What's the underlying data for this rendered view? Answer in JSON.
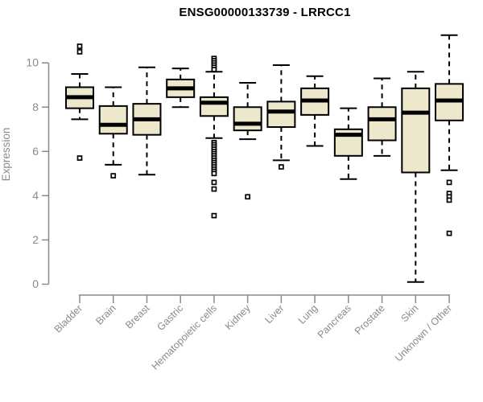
{
  "chart_data": {
    "type": "boxplot",
    "title": "ENSG00000133739 - LRRCC1",
    "ylabel": "Expression",
    "xlabel": "",
    "ylim": [
      0,
      10
    ],
    "yticks": [
      0,
      2,
      4,
      6,
      8,
      10
    ],
    "grid": false,
    "legend": "none",
    "colors": {
      "box_fill": "#ede7cb",
      "box_stroke": "#000000",
      "median": "#000000",
      "axis": "#8a8a8a",
      "tick_label": "#8a8a8a",
      "title": "#000000",
      "background": "#ffffff"
    },
    "categories": [
      "Bladder",
      "Brain",
      "Breast",
      "Gastric",
      "Hematopoietic cells",
      "Kidney",
      "Liver",
      "Lung",
      "Pancreas",
      "Prostate",
      "Skin",
      "Unknown / Other"
    ],
    "series": [
      {
        "category": "Bladder",
        "whisker_low": 7.45,
        "q1": 7.95,
        "median": 8.45,
        "q3": 8.9,
        "whisker_high": 9.5,
        "outliers": [
          10.75,
          10.5,
          5.7
        ]
      },
      {
        "category": "Brain",
        "whisker_low": 5.4,
        "q1": 6.8,
        "median": 7.2,
        "q3": 8.05,
        "whisker_high": 8.9,
        "outliers": [
          4.9
        ]
      },
      {
        "category": "Breast",
        "whisker_low": 4.95,
        "q1": 6.75,
        "median": 7.45,
        "q3": 8.15,
        "whisker_high": 9.8,
        "outliers": []
      },
      {
        "category": "Gastric",
        "whisker_low": 8.0,
        "q1": 8.45,
        "median": 8.85,
        "q3": 9.25,
        "whisker_high": 9.75,
        "outliers": []
      },
      {
        "category": "Hematopoietic cells",
        "whisker_low": 6.6,
        "q1": 7.6,
        "median": 8.2,
        "q3": 8.45,
        "whisker_high": 9.6,
        "outliers": [
          10.2,
          10.1,
          10.0,
          9.9,
          9.8,
          9.7,
          6.4,
          6.3,
          6.2,
          6.1,
          6.0,
          5.9,
          5.8,
          5.7,
          5.6,
          5.5,
          5.4,
          5.3,
          5.2,
          5.1,
          5.0,
          4.6,
          4.3,
          3.1
        ]
      },
      {
        "category": "Kidney",
        "whisker_low": 6.55,
        "q1": 6.95,
        "median": 7.25,
        "q3": 8.0,
        "whisker_high": 9.1,
        "outliers": [
          3.95
        ]
      },
      {
        "category": "Liver",
        "whisker_low": 5.6,
        "q1": 7.1,
        "median": 7.8,
        "q3": 8.25,
        "whisker_high": 9.9,
        "outliers": [
          5.3
        ]
      },
      {
        "category": "Lung",
        "whisker_low": 6.25,
        "q1": 7.65,
        "median": 8.3,
        "q3": 8.85,
        "whisker_high": 9.4,
        "outliers": []
      },
      {
        "category": "Pancreas",
        "whisker_low": 4.75,
        "q1": 5.8,
        "median": 6.75,
        "q3": 7.0,
        "whisker_high": 7.95,
        "outliers": []
      },
      {
        "category": "Prostate",
        "whisker_low": 5.8,
        "q1": 6.5,
        "median": 7.45,
        "q3": 8.0,
        "whisker_high": 9.3,
        "outliers": []
      },
      {
        "category": "Skin",
        "whisker_low": 0.1,
        "q1": 5.05,
        "median": 7.75,
        "q3": 8.85,
        "whisker_high": 9.6,
        "outliers": []
      },
      {
        "category": "Unknown / Other",
        "whisker_low": 5.15,
        "q1": 7.4,
        "median": 8.3,
        "q3": 9.05,
        "whisker_high": 11.25,
        "outliers": [
          4.6,
          4.1,
          3.95,
          3.8,
          2.3
        ]
      }
    ]
  }
}
